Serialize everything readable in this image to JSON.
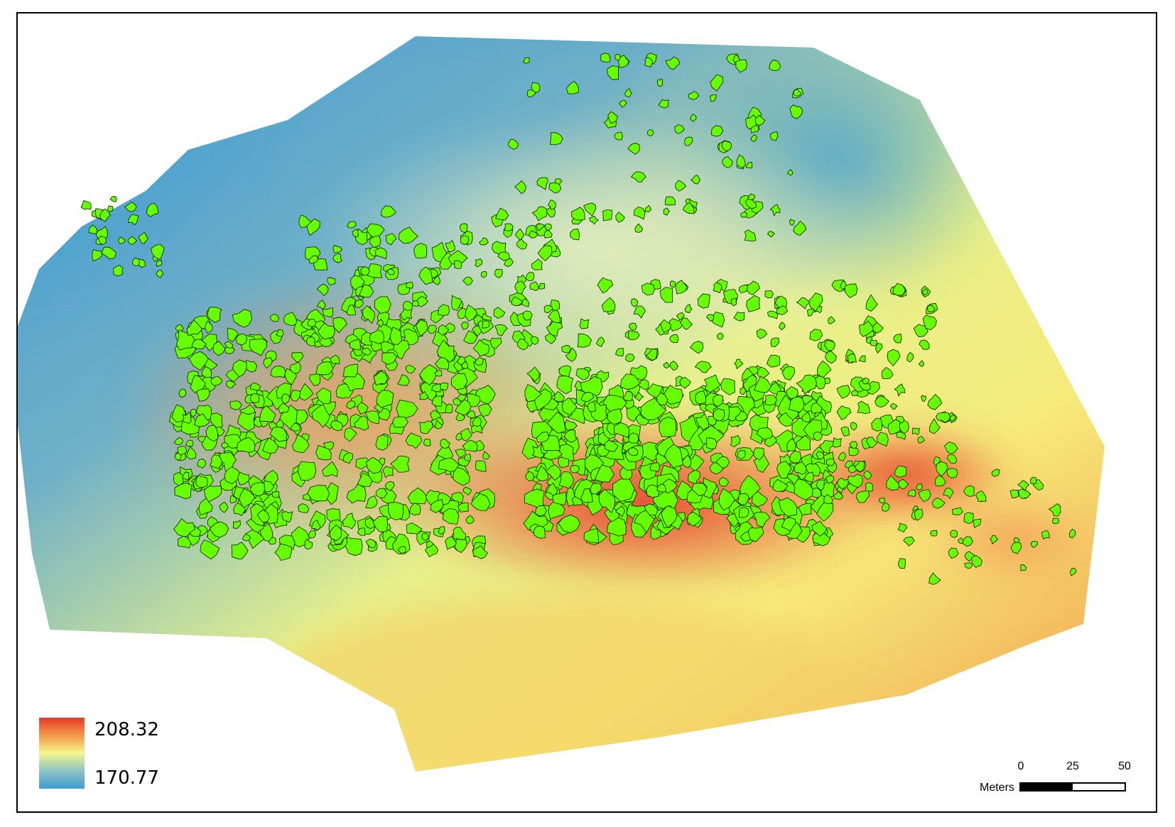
{
  "legend": {
    "max_label": "208.32",
    "min_label": "170.77",
    "colors": {
      "high": "#e8392a",
      "mid_high": "#f29a4a",
      "mid": "#f5f58a",
      "mid_low": "#8ec4c4",
      "low": "#3d9bd4"
    }
  },
  "scalebar": {
    "ticks": [
      "0",
      "25",
      "50"
    ],
    "units": "Meters"
  },
  "map": {
    "patch_fill": "#66ff00",
    "patch_stroke": "#1a3300"
  }
}
